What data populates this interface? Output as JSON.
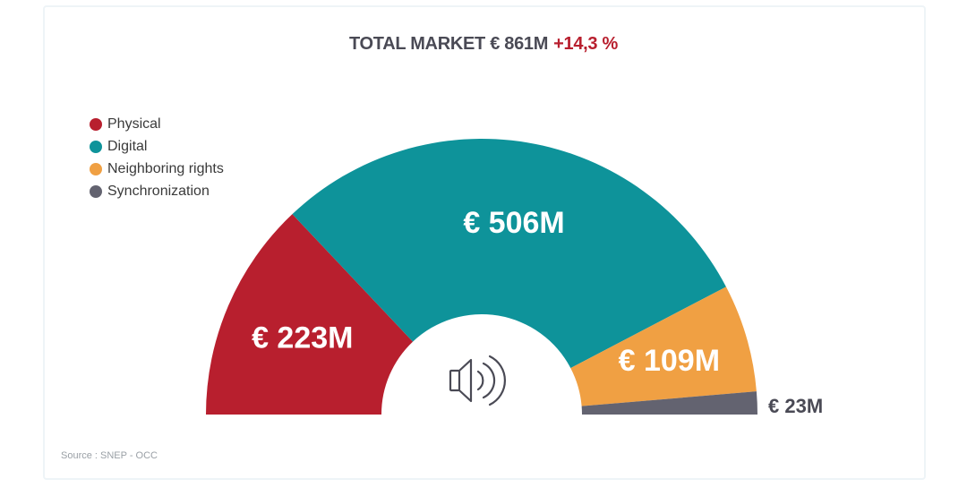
{
  "title": {
    "main": "TOTAL MARKET € 861M",
    "growth": "+14,3 %"
  },
  "chart_data": {
    "type": "pie",
    "variant": "half-donut",
    "total": 861,
    "unit": "€M",
    "categories": [
      "Physical",
      "Digital",
      "Neighboring rights",
      "Synchronization"
    ],
    "values": [
      223,
      506,
      109,
      23
    ],
    "labels": [
      "€ 223M",
      "€ 506M",
      "€ 109M",
      "€ 23M"
    ],
    "colors": [
      "#b81f2e",
      "#0e939a",
      "#f0a043",
      "#636370"
    ],
    "legend_position": "top-left"
  },
  "legend": [
    {
      "label": "Physical",
      "color": "#b81f2e"
    },
    {
      "label": "Digital",
      "color": "#0e939a"
    },
    {
      "label": "Neighboring rights",
      "color": "#f0a043"
    },
    {
      "label": "Synchronization",
      "color": "#636370"
    }
  ],
  "center_icon": "speaker-icon",
  "source": "Source : SNEP - OCC"
}
